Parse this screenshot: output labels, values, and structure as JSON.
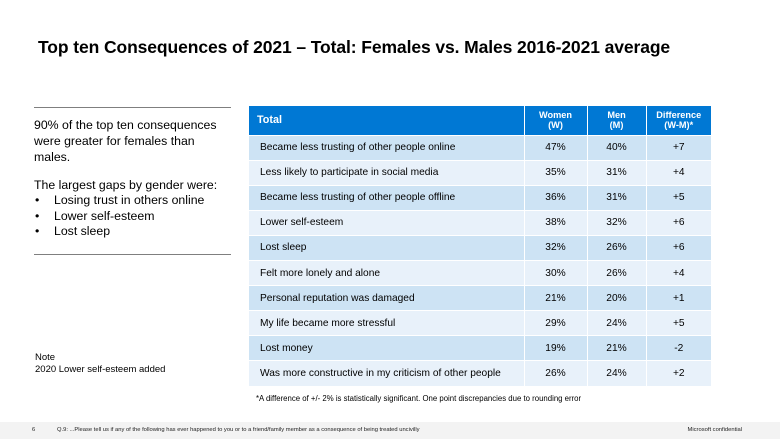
{
  "title": "Top ten Consequences of 2021 – Total: Females vs. Males 2016-2021 average",
  "side_panel": {
    "summary": "90% of the top ten consequences were greater for females than males.",
    "gaps_intro": "The largest gaps by gender were:",
    "bullet_glyph": "•",
    "gaps": [
      "Losing trust in others online",
      "Lower self-esteem",
      "Lost sleep"
    ]
  },
  "note": {
    "heading": "Note",
    "text": "2020 Lower self-esteem added"
  },
  "table": {
    "headers": {
      "total": "Total",
      "women_line1": "Women",
      "women_line2": "(W)",
      "men_line1": "Men",
      "men_line2": "(M)",
      "diff_line1": "Difference",
      "diff_line2": "(W-M)*"
    },
    "rows": [
      {
        "label": "Became less trusting of other people online",
        "women": "47%",
        "men": "40%",
        "diff": "+7"
      },
      {
        "label": "Less likely to participate in social media",
        "women": "35%",
        "men": "31%",
        "diff": "+4"
      },
      {
        "label": "Became less trusting of other people offline",
        "women": "36%",
        "men": "31%",
        "diff": "+5"
      },
      {
        "label": "Lower self-esteem",
        "women": "38%",
        "men": "32%",
        "diff": "+6"
      },
      {
        "label": "Lost sleep",
        "women": "32%",
        "men": "26%",
        "diff": "+6"
      },
      {
        "label": "Felt more lonely and alone",
        "women": "30%",
        "men": "26%",
        "diff": "+4"
      },
      {
        "label": "Personal reputation was damaged",
        "women": "21%",
        "men": "20%",
        "diff": "+1"
      },
      {
        "label": "My life became more stressful",
        "women": "29%",
        "men": "24%",
        "diff": "+5"
      },
      {
        "label": "Lost money",
        "women": "19%",
        "men": "21%",
        "diff": "-2"
      },
      {
        "label": "Was more constructive in my criticism of other people",
        "women": "26%",
        "men": "24%",
        "diff": "+2"
      }
    ]
  },
  "footnote": "*A difference of +/- 2% is statistically significant. One point discrepancies due to rounding error",
  "footer": {
    "page_number": "6",
    "question": "Q.9:  ...Please tell us if any of the following has ever happened to you or to a friend/family member as a consequence of being treated uncivilly",
    "confidential": "Microsoft confidential"
  },
  "colors": {
    "header_blue": "#0078d4",
    "row_dark": "#cde3f4",
    "row_light": "#e8f1fa"
  }
}
